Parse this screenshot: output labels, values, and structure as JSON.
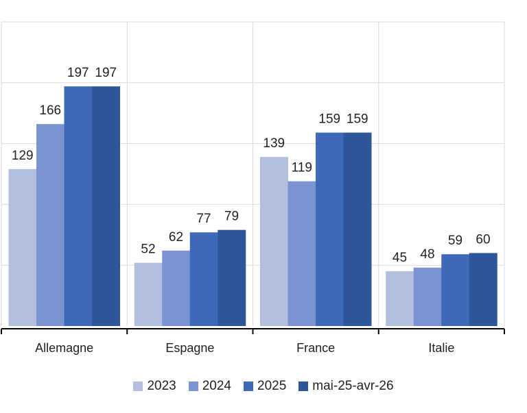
{
  "chart_data": {
    "type": "bar",
    "title": "",
    "xlabel": "",
    "ylabel": "",
    "categories": [
      "Allemagne",
      "Espagne",
      "France",
      "Italie"
    ],
    "series": [
      {
        "name": "2023",
        "color": "#b4bfe0",
        "values": [
          129,
          52,
          139,
          45
        ]
      },
      {
        "name": "2024",
        "color": "#7b93d0",
        "values": [
          166,
          62,
          119,
          48
        ]
      },
      {
        "name": "2025",
        "color": "#3e68b8",
        "values": [
          197,
          77,
          159,
          59
        ]
      },
      {
        "name": "mai-25-avr-26",
        "color": "#30569a",
        "values": [
          197,
          79,
          159,
          60
        ]
      }
    ],
    "ylim": [
      0,
      250
    ],
    "grid": true,
    "legend": "bottom"
  }
}
